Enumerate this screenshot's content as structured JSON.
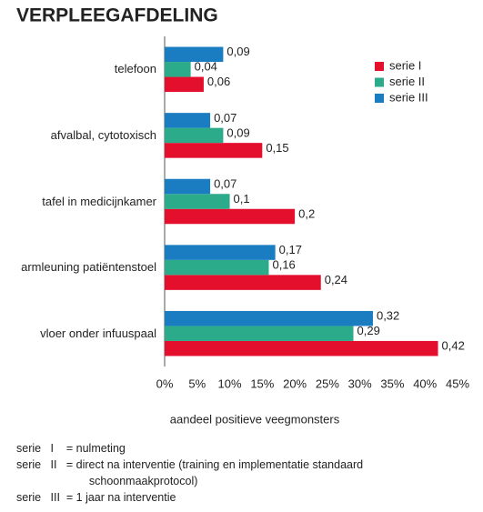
{
  "chart_data": {
    "type": "bar",
    "orientation": "horizontal",
    "title": "VERPLEEGAFDELING",
    "title_color": "#2aa37e",
    "categories": [
      "telefoon",
      "afvalbal, cytotoxisch",
      "tafel in medicijnkamer",
      "armleuning patiëntenstoel",
      "vloer onder infuuspaal"
    ],
    "series": [
      {
        "name": "serie I",
        "color": "#e30f2d",
        "values": [
          6,
          15,
          20,
          24,
          42
        ],
        "value_labels": [
          "0,06",
          "0,15",
          "0,2",
          "0,24",
          "0,42"
        ]
      },
      {
        "name": "serie II",
        "color": "#2bab8a",
        "values": [
          4,
          9,
          10,
          16,
          29
        ],
        "value_labels": [
          "0,04",
          "0,09",
          "0,1",
          "0,16",
          "0,29"
        ]
      },
      {
        "name": "serie III",
        "color": "#1a7dc2",
        "values": [
          9,
          7,
          7,
          17,
          32
        ],
        "value_labels": [
          "0,09",
          "0,07",
          "0,07",
          "0,17",
          "0,32"
        ]
      }
    ],
    "xlabel": "aandeel positieve veegmonsters",
    "xlim": [
      0,
      45
    ],
    "xticks": [
      {
        "value": 0,
        "label": "0%"
      },
      {
        "value": 5,
        "label": "5%"
      },
      {
        "value": 10,
        "label": "10%"
      },
      {
        "value": 15,
        "label": "15%"
      },
      {
        "value": 20,
        "label": "20%"
      },
      {
        "value": 25,
        "label": "25%"
      },
      {
        "value": 30,
        "label": "30%"
      },
      {
        "value": 35,
        "label": "35%"
      },
      {
        "value": 40,
        "label": "40%"
      },
      {
        "value": 45,
        "label": "45%"
      }
    ],
    "grid": false,
    "legend": "top-right",
    "notes": [
      "serie   I    = nulmeting",
      "serie   II   = direct na interventie (training en implementatie standaard",
      "                       schoonmaakprotocol)",
      "serie   III  = 1 jaar na interventie"
    ]
  }
}
